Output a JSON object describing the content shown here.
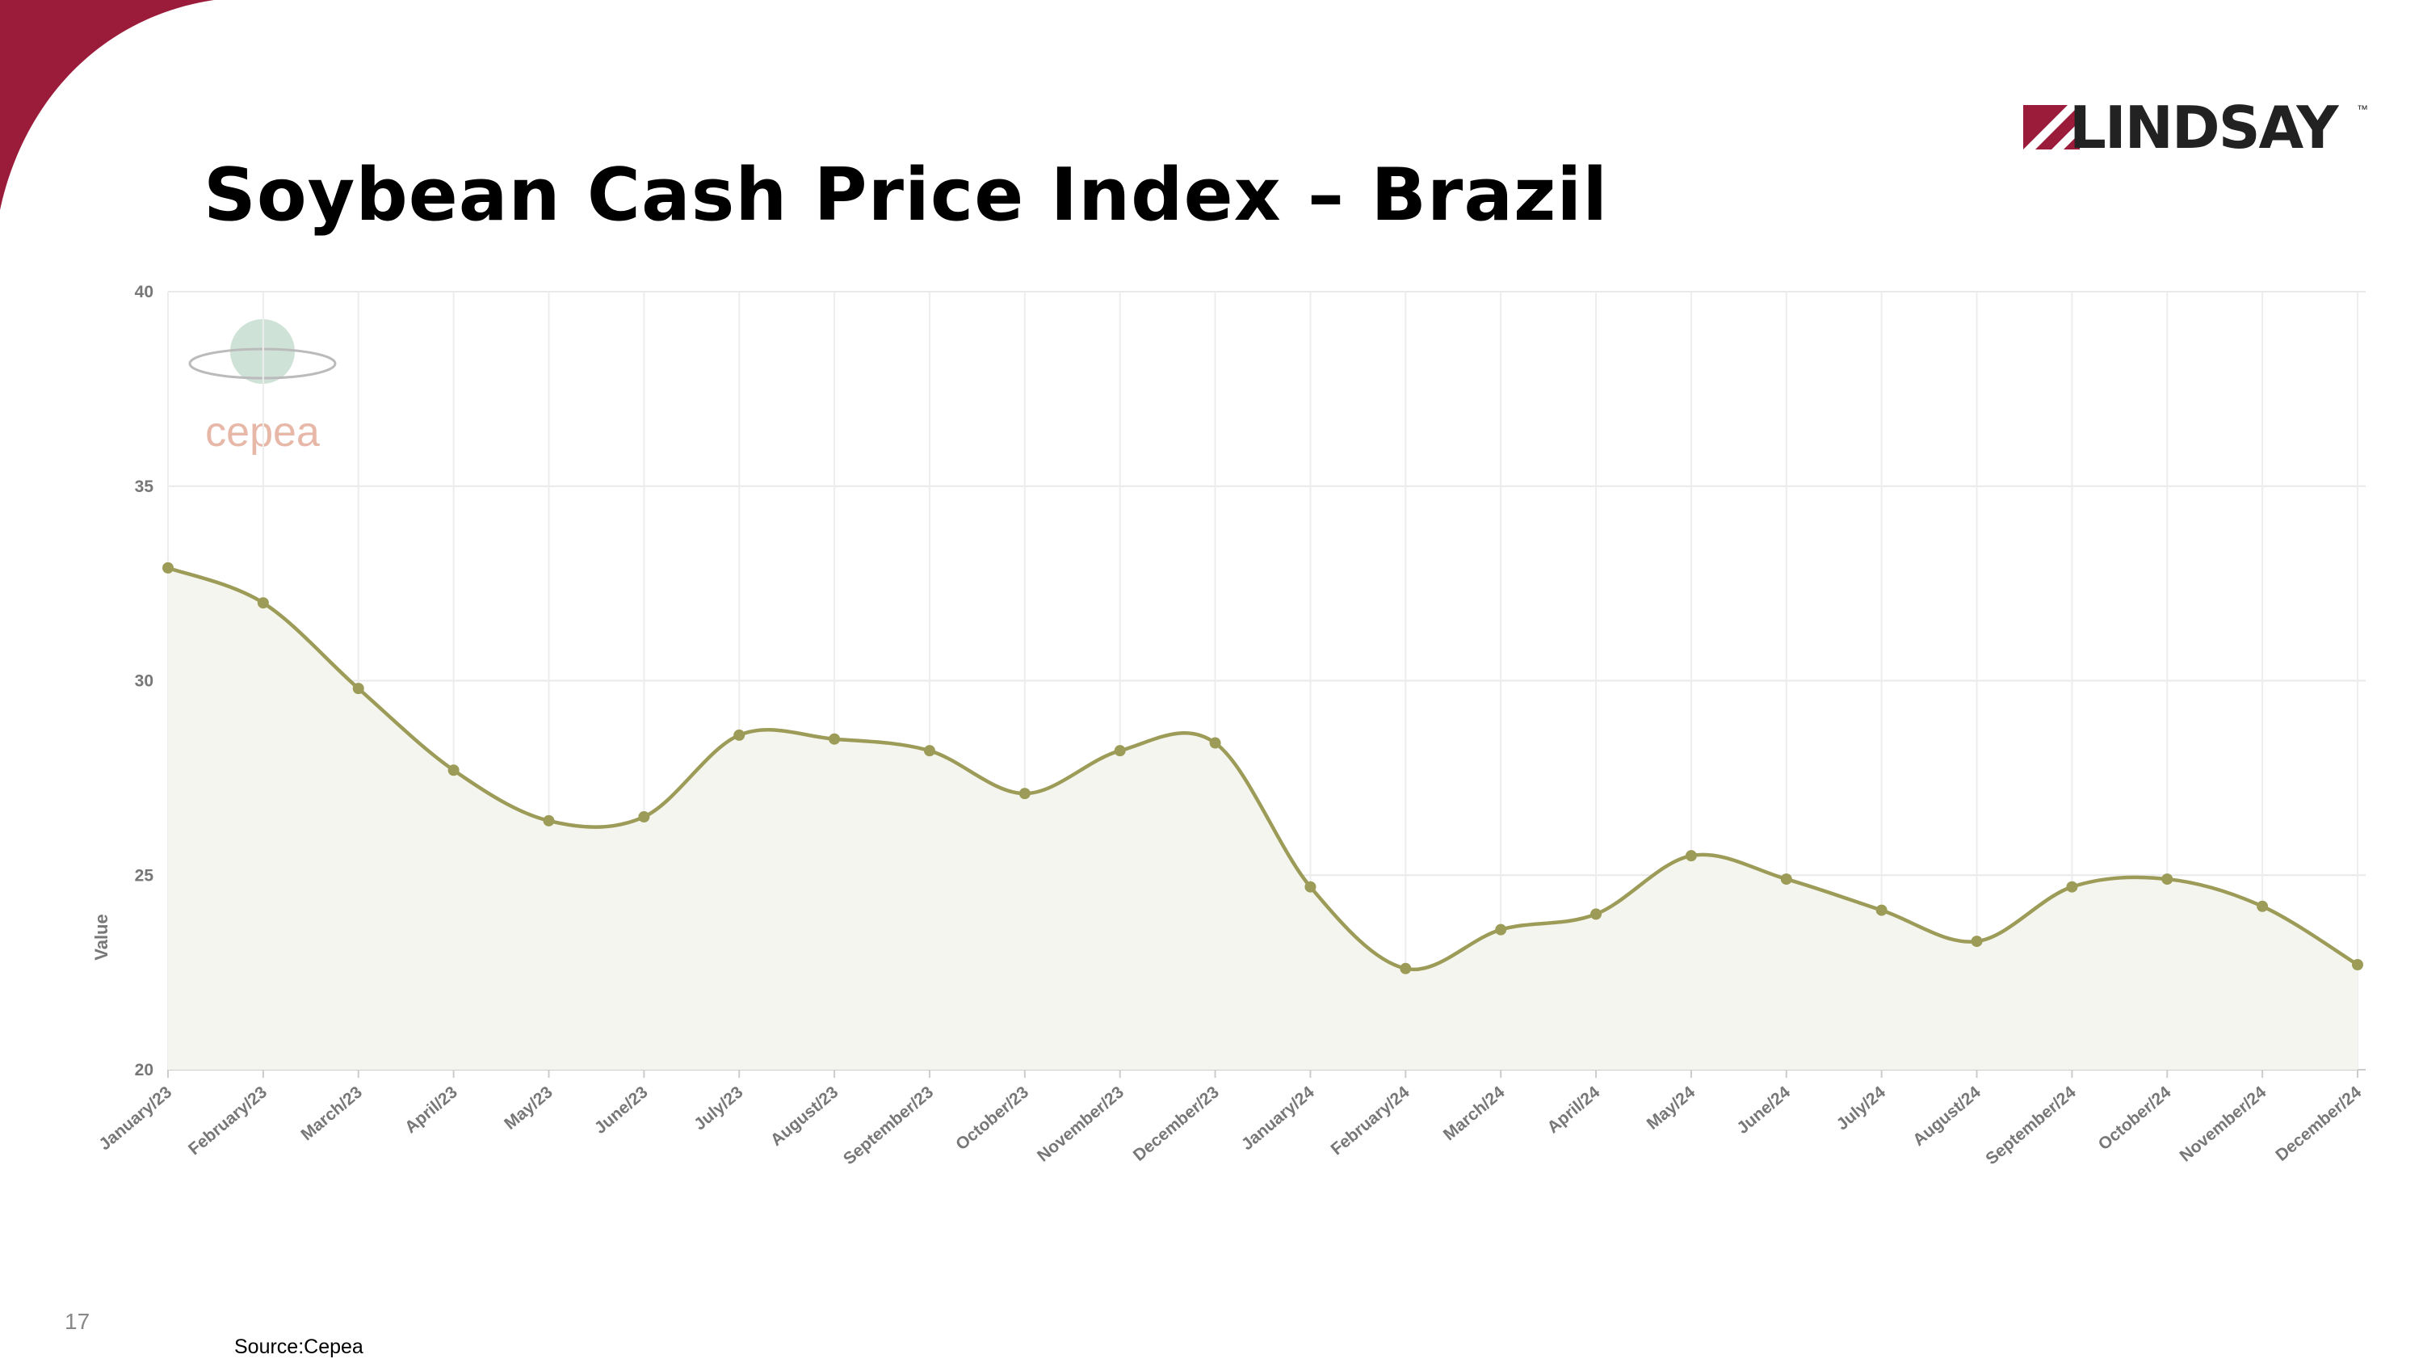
{
  "header": {
    "logo": "LINDSAY",
    "logo_mark": "™"
  },
  "watermark": "cepea",
  "page_number": "17",
  "source": "Source:Cepea",
  "chart_data": {
    "type": "line",
    "title": "Soybean Cash Price Index – Brazil",
    "y_label": "Value",
    "categories": [
      "January/23",
      "February/23",
      "March/23",
      "April/23",
      "May/23",
      "June/23",
      "July/23",
      "August/23",
      "September/23",
      "October/23",
      "November/23",
      "December/23",
      "January/24",
      "February/24",
      "March/24",
      "April/24",
      "May/24",
      "June/24",
      "July/24",
      "August/24",
      "September/24",
      "October/24",
      "November/24",
      "December/24"
    ],
    "values": [
      32.9,
      32.0,
      29.8,
      27.7,
      26.4,
      26.5,
      28.6,
      28.5,
      28.2,
      27.1,
      28.2,
      28.4,
      24.7,
      22.6,
      23.6,
      24.0,
      25.5,
      24.9,
      24.1,
      23.3,
      24.7,
      24.9,
      24.2,
      22.7
    ],
    "color": "#9c9c58",
    "fill_color": "#f4f5ee",
    "ylim": [
      20,
      40
    ],
    "yticks": [
      20,
      25,
      30,
      35,
      40
    ],
    "grid": true
  }
}
